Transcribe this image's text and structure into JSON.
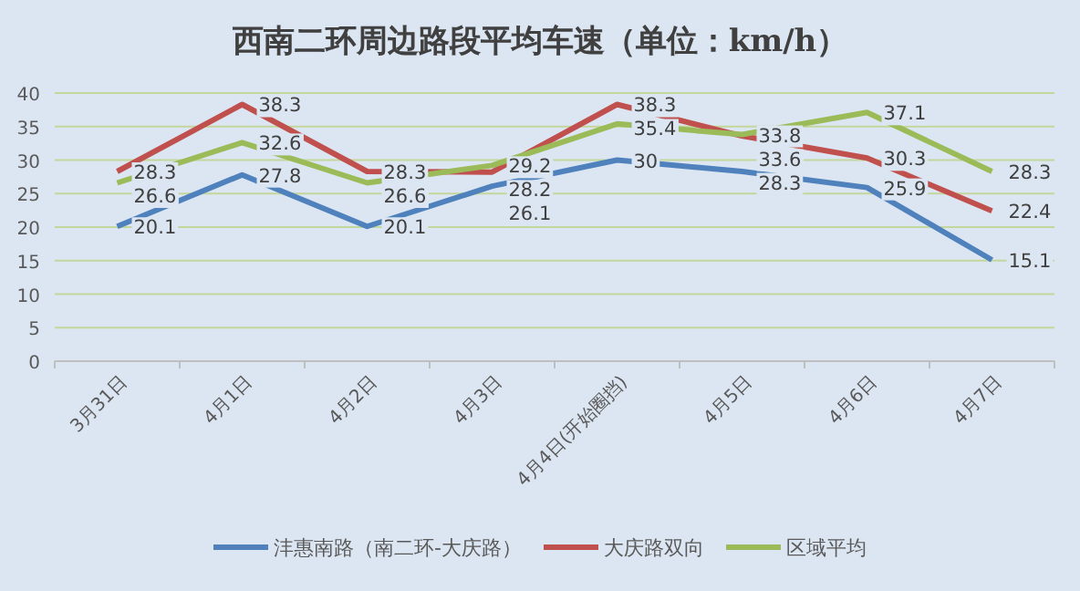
{
  "chart_data": {
    "type": "line",
    "title": "西南二环周边路段平均车速（单位：km/h）",
    "categories": [
      "3月31日",
      "4月1日",
      "4月2日",
      "4月3日",
      "4月4日(开始圈挡)",
      "4月5日",
      "4月6日",
      "4月7日"
    ],
    "series": [
      {
        "name": "沣惠南路（南二环-大庆路）",
        "color": "#4f81bd",
        "values": [
          20.1,
          27.8,
          20.1,
          26.1,
          30,
          28.3,
          25.9,
          15.1
        ]
      },
      {
        "name": "大庆路双向",
        "color": "#c0504d",
        "values": [
          28.3,
          38.3,
          28.3,
          28.2,
          38.3,
          33.6,
          30.3,
          22.4
        ]
      },
      {
        "name": "区域平均",
        "color": "#9bbb59",
        "values": [
          26.6,
          32.6,
          26.6,
          29.2,
          35.4,
          33.8,
          37.1,
          28.3
        ]
      }
    ],
    "ylim": [
      0,
      40
    ],
    "yticks": [
      0,
      5,
      10,
      15,
      20,
      25,
      30,
      35,
      40
    ],
    "grid": "y",
    "legend": "bottom",
    "data_labels": true,
    "marker": "none",
    "line_style": "solid"
  }
}
